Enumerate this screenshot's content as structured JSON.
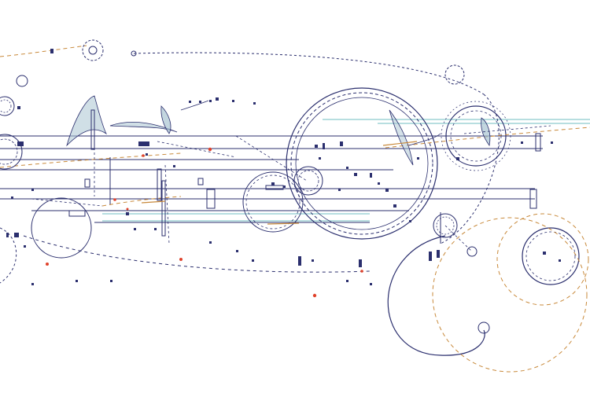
{
  "artwork": {
    "description_visible_text": "",
    "colors": {
      "background": "#ffffff",
      "line": "#2b2f6e",
      "line_light": "#8a8fbd",
      "dashed_orange": "#c8893a",
      "accent_cyan": "#9fd3d6",
      "fill_pale_blue": "#a9c4d2",
      "dot_red": "#e0422b"
    }
  }
}
